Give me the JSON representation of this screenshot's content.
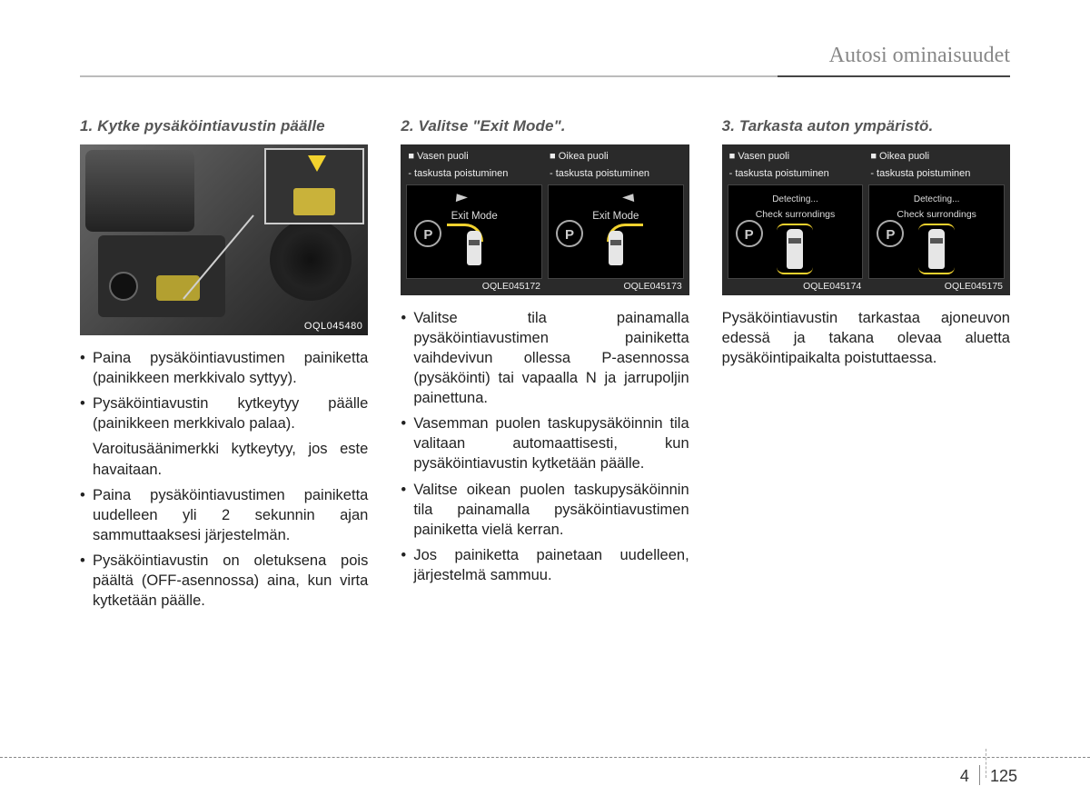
{
  "header": {
    "title": "Autosi ominaisuudet"
  },
  "page": {
    "chapter": "4",
    "number": "125"
  },
  "colors": {
    "text": "#222222",
    "muted_header": "#888888",
    "screen_bg": "#000000",
    "panel_bg": "#2a2a2a",
    "accent_yellow": "#f2d22e"
  },
  "col1": {
    "title": "1. Kytke pysäköintiavustin päälle",
    "image_code": "OQL045480",
    "bullets": [
      "Paina pysäköintiavustimen painiketta (painikkeen merkkivalo syttyy).",
      "Pysäköintiavustin kytkeytyy päälle (painikkeen merkkivalo palaa).",
      "Paina pysäköintiavustimen painiketta uudelleen yli 2 sekunnin ajan sammuttaaksesi järjestelmän.",
      "Pysäköintiavustin on oletuksena pois päältä (OFF-asennossa) aina, kun virta kytketään päälle."
    ],
    "sub_after_1": "Varoitusäänimerkki kytkeytyy, jos este havaitaan."
  },
  "col2": {
    "title": "2. Valitse \"Exit Mode\".",
    "left_label_1": "■ Vasen puoli",
    "left_label_2": "  - taskusta poistuminen",
    "right_label_1": "■ Oikea puoli",
    "right_label_2": "  - taskusta poistuminen",
    "screen_text": "Exit Mode",
    "p_symbol": "P",
    "code_left": "OQLE045172",
    "code_right": "OQLE045173",
    "bullets": [
      "Valitse tila painamalla pysäköintiavustimen painiketta vaihdevivun ollessa P-asennossa (pysäköinti) tai vapaalla N ja jarrupoljin painettuna.",
      "Vasemman puolen taskupysäköinnin tila valitaan automaattisesti, kun pysäköintiavustin kytketään päälle.",
      "Valitse oikean puolen taskupysäköinnin tila painamalla pysäköintiavustimen painiketta vielä kerran.",
      "Jos painiketta painetaan uudelleen, järjestelmä sammuu."
    ]
  },
  "col3": {
    "title": "3. Tarkasta auton ympäristö.",
    "left_label_1": "■ Vasen puoli",
    "left_label_2": "  - taskusta poistuminen",
    "right_label_1": "■ Oikea puoli",
    "right_label_2": "  - taskusta poistuminen",
    "detecting": "Detecting...",
    "check": "Check surrondings",
    "p_symbol": "P",
    "code_left": "OQLE045174",
    "code_right": "OQLE045175",
    "paragraph": "Pysäköintiavustin tarkastaa ajoneuvon edessä ja takana olevaa aluetta pysäköintipaikalta poistuttaessa."
  }
}
